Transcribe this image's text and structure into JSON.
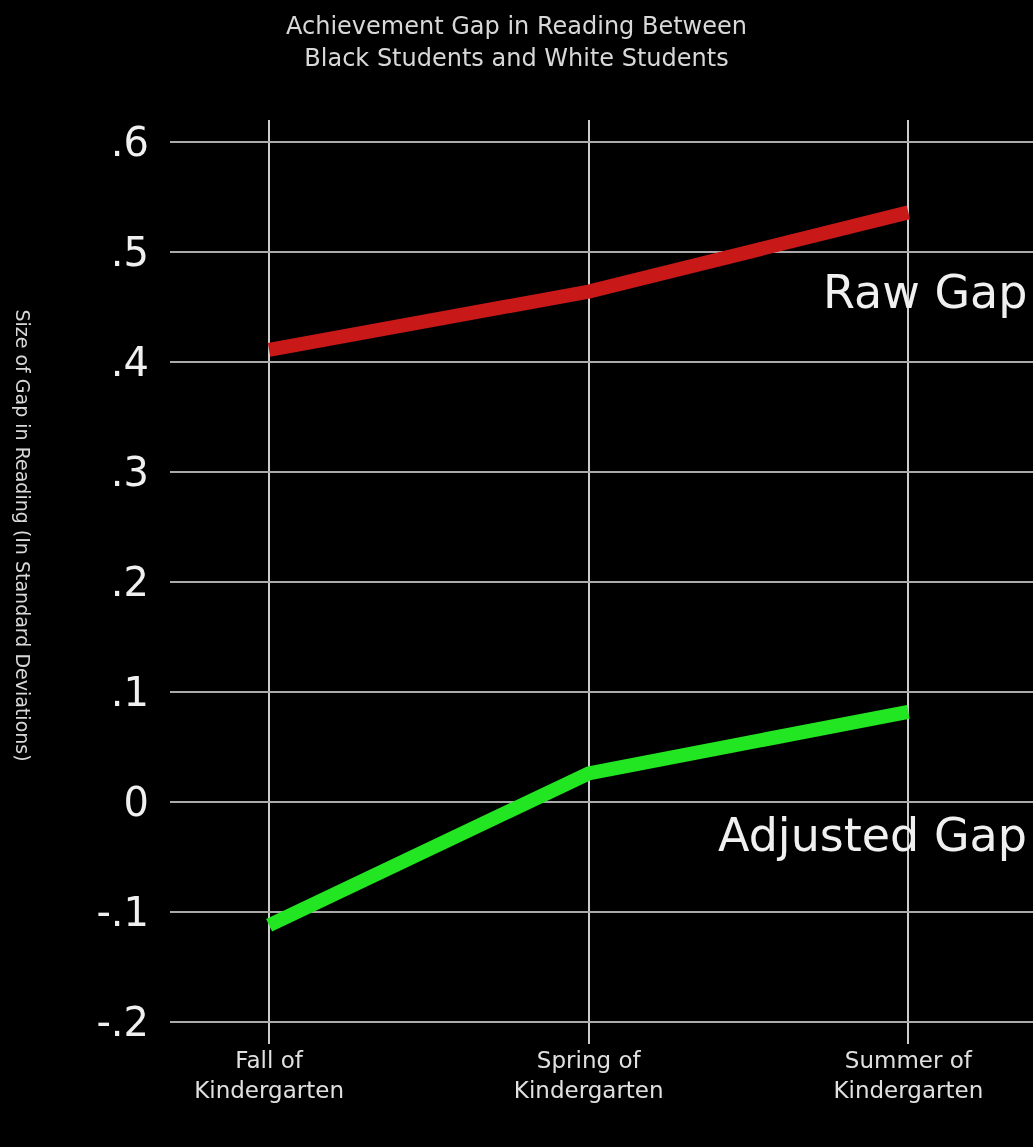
{
  "chart_data": {
    "type": "line",
    "title": "Achievement Gap in Reading Between\nBlack Students and White Students",
    "ylabel": "Size of Gap in Reading (In Standard Deviations)",
    "categories": [
      "Fall of\nKindergarten",
      "Spring of\nKindergarten",
      "Summer of\nKindergarten"
    ],
    "series": [
      {
        "name": "Raw Gap",
        "color": "#c81818",
        "values": [
          0.411,
          0.464,
          0.536
        ]
      },
      {
        "name": "Adjusted Gap",
        "color": "#22e622",
        "values": [
          -0.112,
          0.026,
          0.082
        ]
      }
    ],
    "ylim": [
      -0.22,
      0.62
    ],
    "yticks": [
      {
        "value": -0.2,
        "label": "-.2"
      },
      {
        "value": -0.1,
        "label": "-.1"
      },
      0,
      {
        "value": 0.1,
        "label": ".1"
      },
      {
        "value": 0.2,
        "label": ".2"
      },
      {
        "value": 0.3,
        "label": ".3"
      },
      {
        "value": 0.4,
        "label": ".4"
      },
      {
        "value": 0.5,
        "label": ".5"
      },
      {
        "value": 0.6,
        "label": ".6"
      }
    ],
    "grid": true,
    "legend": false,
    "marker": "none",
    "line_style": "solid"
  }
}
